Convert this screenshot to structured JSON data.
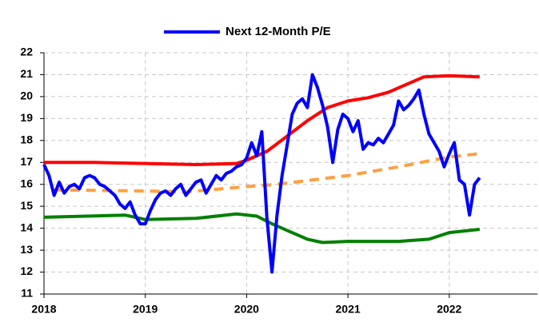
{
  "chart_data": {
    "type": "line",
    "xlim": [
      2018,
      2022.87
    ],
    "xticks": [
      2018,
      2019,
      2020,
      2021,
      2022
    ],
    "ylim": [
      11,
      22
    ],
    "yticks": [
      11,
      12,
      13,
      14,
      15,
      16,
      17,
      18,
      19,
      20,
      21,
      22
    ],
    "grid": true,
    "legend": "top",
    "series": [
      {
        "name": "Next 12-Month P/E",
        "color": "#0000ff",
        "x": [
          2018,
          2018.05,
          2018.1,
          2018.15,
          2018.2,
          2018.25,
          2018.3,
          2018.35,
          2018.4,
          2018.45,
          2018.5,
          2018.55,
          2018.6,
          2018.65,
          2018.7,
          2018.75,
          2018.8,
          2018.85,
          2018.9,
          2018.95,
          2019,
          2019.05,
          2019.1,
          2019.15,
          2019.2,
          2019.25,
          2019.3,
          2019.35,
          2019.4,
          2019.45,
          2019.5,
          2019.55,
          2019.6,
          2019.65,
          2019.7,
          2019.75,
          2019.8,
          2019.85,
          2019.9,
          2019.95,
          2020,
          2020.05,
          2020.1,
          2020.15,
          2020.2,
          2020.25,
          2020.3,
          2020.35,
          2020.4,
          2020.45,
          2020.5,
          2020.55,
          2020.6,
          2020.65,
          2020.7,
          2020.75,
          2020.8,
          2020.85,
          2020.9,
          2020.95,
          2021,
          2021.05,
          2021.1,
          2021.15,
          2021.2,
          2021.25,
          2021.3,
          2021.35,
          2021.4,
          2021.45,
          2021.5,
          2021.55,
          2021.6,
          2021.65,
          2021.7,
          2021.75,
          2021.8,
          2021.85,
          2021.9,
          2021.95,
          2022,
          2022.05,
          2022.1,
          2022.15,
          2022.2,
          2022.25,
          2022.3
        ],
        "values": [
          16.9,
          16.4,
          15.5,
          16.1,
          15.6,
          15.9,
          16.0,
          15.8,
          16.3,
          16.4,
          16.3,
          16.0,
          15.9,
          15.7,
          15.5,
          15.1,
          14.9,
          15.2,
          14.6,
          14.2,
          14.2,
          14.8,
          15.3,
          15.6,
          15.7,
          15.5,
          15.8,
          16.0,
          15.5,
          15.8,
          16.1,
          16.2,
          15.6,
          16.0,
          16.4,
          16.2,
          16.5,
          16.6,
          16.8,
          16.9,
          17.2,
          17.9,
          17.3,
          18.4,
          14.5,
          12.0,
          14.6,
          16.4,
          17.8,
          19.2,
          19.7,
          19.9,
          19.5,
          21.0,
          20.4,
          19.6,
          18.6,
          17.0,
          18.5,
          19.2,
          19.0,
          18.4,
          18.9,
          17.6,
          17.9,
          17.8,
          18.1,
          17.9,
          18.3,
          18.7,
          19.8,
          19.4,
          19.6,
          19.9,
          20.3,
          19.2,
          18.3,
          17.9,
          17.5,
          16.8,
          17.4,
          17.9,
          16.2,
          16.0,
          14.6,
          16.0,
          16.3
        ]
      },
      {
        "color": "#ff0000",
        "x": [
          2018,
          2018.5,
          2019,
          2019.5,
          2019.9,
          2020,
          2020.2,
          2020.4,
          2020.6,
          2020.8,
          2021,
          2021.2,
          2021.4,
          2021.6,
          2021.75,
          2022,
          2022.3
        ],
        "values": [
          17.0,
          17.0,
          16.95,
          16.9,
          16.95,
          17.1,
          17.5,
          18.2,
          18.9,
          19.5,
          19.8,
          19.95,
          20.2,
          20.6,
          20.9,
          20.95,
          20.9
        ]
      },
      {
        "color": "#ffa040",
        "dashed": true,
        "x": [
          2018.1,
          2019,
          2019.4,
          2020,
          2020.3,
          2021,
          2021.5,
          2022,
          2022.3
        ],
        "values": [
          15.75,
          15.7,
          15.65,
          15.9,
          16.0,
          16.4,
          16.8,
          17.25,
          17.4
        ]
      },
      {
        "color": "#008000",
        "x": [
          2018,
          2018.8,
          2019,
          2019.5,
          2019.9,
          2020.1,
          2020.25,
          2020.4,
          2020.6,
          2020.75,
          2021,
          2021.5,
          2021.8,
          2022,
          2022.3
        ],
        "values": [
          14.5,
          14.6,
          14.4,
          14.45,
          14.65,
          14.55,
          14.2,
          13.9,
          13.5,
          13.35,
          13.4,
          13.4,
          13.5,
          13.8,
          13.95
        ]
      }
    ]
  }
}
